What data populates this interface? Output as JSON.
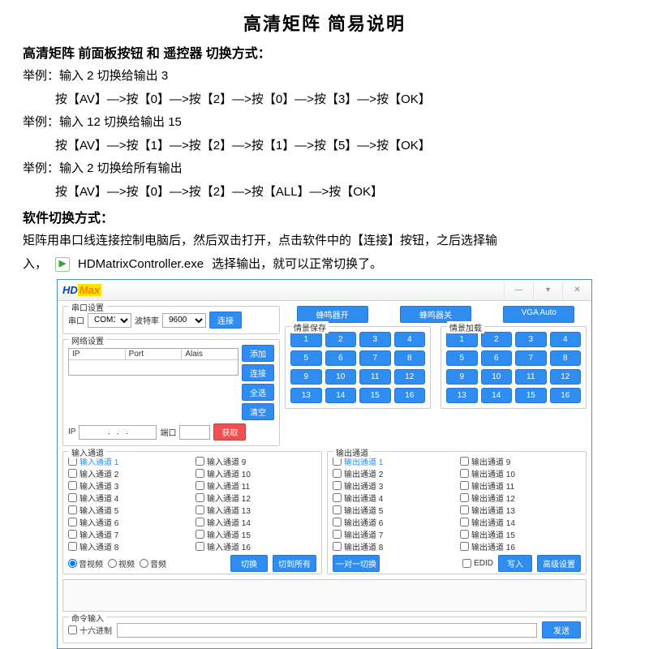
{
  "doc": {
    "title": "高清矩阵  简易说明",
    "section1_header": "高清矩阵 前面板按钮 和 遥控器 切换方式：",
    "ex1_label": "举例：输入 2 切换给输出 3",
    "ex1_steps": "按【AV】—>按【0】—>按【2】—>按【0】—>按【3】—>按【OK】",
    "ex2_label": "举例：输入 12 切换给输出 15",
    "ex2_steps": "按【AV】—>按【1】—>按【2】—>按【1】—>按【5】—>按【OK】",
    "ex3_label": "举例：输入 2 切换给所有输出",
    "ex3_steps": "按【AV】—>按【0】—>按【2】—>按【ALL】—>按【OK】",
    "section2_header": "软件切换方式：",
    "sw_line1": "矩阵用串口线连接控制电脑后，然后双击打开，点击软件中的【连接】按钮，之后选择输",
    "sw_prefix": "入，",
    "exe_name": "HDMatrixController.exe",
    "sw_suffix": "选择输出，就可以正常切换了。"
  },
  "app": {
    "logo_hd": "HD",
    "logo_max": "Max",
    "winbtn_min": "—",
    "winbtn_down": "▾",
    "winbtn_close": "✕",
    "serial": {
      "group": "串口设置",
      "port_lbl": "串口",
      "port_val": "COM1",
      "baud_lbl": "波特率",
      "baud_val": "9600",
      "connect": "连接"
    },
    "net": {
      "group": "网络设置",
      "col_ip": "IP",
      "col_port": "Port",
      "col_alias": "Alais",
      "add": "添加",
      "connect": "连接",
      "selall": "全选",
      "clear": "清空",
      "ip_lbl": "IP",
      "ip_val": ".   .   .",
      "port_lbl": "端口",
      "get": "获取"
    },
    "top_buttons": {
      "buzzer_on": "蜂鸣器开",
      "buzzer_off": "蜂鸣器关",
      "vga_auto": "VGA Auto"
    },
    "scene_save": "情景保存",
    "scene_load": "情景加载",
    "nums": [
      "1",
      "2",
      "3",
      "4",
      "5",
      "6",
      "7",
      "8",
      "9",
      "10",
      "11",
      "12",
      "13",
      "14",
      "15",
      "16"
    ],
    "in_group": "输入通道",
    "out_group": "输出通道",
    "in_prefix": "输入通道 ",
    "out_prefix": "输出通道 ",
    "ch_order": [
      1,
      9,
      2,
      10,
      3,
      11,
      4,
      12,
      5,
      13,
      6,
      14,
      7,
      15,
      8,
      16
    ],
    "radios": {
      "av": "音视频",
      "v": "视频",
      "a": "音频"
    },
    "btn_switch": "切换",
    "btn_switch_all": "切到所有",
    "btn_one2one": "一对一切换",
    "edid_lbl": "EDID",
    "btn_write": "写入",
    "btn_adv": "高级设置",
    "cmd_group": "命令输入",
    "hex_lbl": "十六进制",
    "btn_send": "发送"
  },
  "colors": {
    "accent": "#2f8cf0"
  }
}
